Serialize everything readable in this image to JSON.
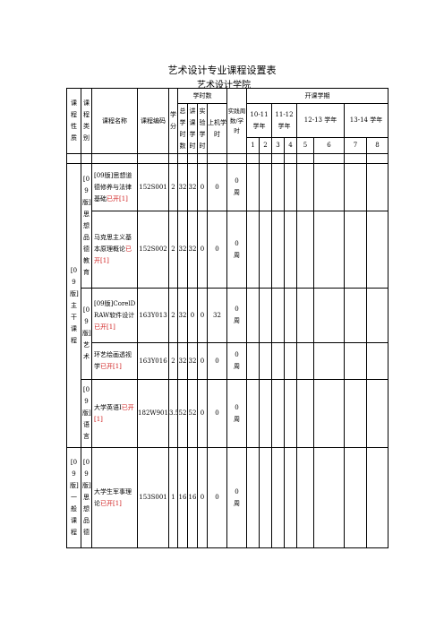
{
  "document": {
    "title": "艺术设计专业课程设置表",
    "subtitle": "艺术设计学院"
  },
  "header": {
    "nature": "课程性质",
    "category": "课程类别",
    "name": "课程名称",
    "code": "课程编码",
    "credit": "学分",
    "hours_group": "学时数",
    "total": "总学时数",
    "lecture": "讲课学时",
    "experiment": "实验学时",
    "computer": "上机学时",
    "practice": "实践周数/学时",
    "terms_group": "开课学期",
    "years": [
      "10-11 学年",
      "11-12 学年",
      "12-13 学年",
      "13-14 学年"
    ],
    "semesters": [
      "1",
      "2",
      "3",
      "4",
      "5",
      "6",
      "7",
      "8"
    ]
  },
  "groups": {
    "g1_nature": "[09版]主干课程",
    "g1_cat_a": "[09版]思想品德教育",
    "g1_cat_b": "[09版]艺术",
    "g1_cat_c": "[09版]语言",
    "g2_nature": "[09版]一般课程",
    "g2_cat": "[09版]思想品德"
  },
  "courses": [
    {
      "prefix": "[09版]",
      "name": "思想道德修养与法律基础",
      "status": "已开[1]",
      "code": "152S001",
      "credit": "2",
      "total": "32",
      "lecture": "32",
      "experiment": "0",
      "computer": "0",
      "practice": "0周"
    },
    {
      "prefix": "",
      "name": "马克思主义基本原理概论",
      "status": "已开[1]",
      "code": "152S002",
      "credit": "2",
      "total": "32",
      "lecture": "32",
      "experiment": "0",
      "computer": "0",
      "practice": "0周"
    },
    {
      "prefix": "[09版]",
      "name": "CorelDRAW软件设计",
      "status": "已开[1]",
      "code": "163Y013",
      "credit": "2",
      "total": "32",
      "lecture": "0",
      "experiment": "0",
      "computer": "32",
      "practice": "0周"
    },
    {
      "prefix": "",
      "name": "环艺绘画透视学",
      "status": "已开[1]",
      "code": "163Y016",
      "credit": "2",
      "total": "32",
      "lecture": "32",
      "experiment": "0",
      "computer": "0",
      "practice": "0周"
    },
    {
      "prefix": "",
      "name": "大学英语Ⅰ",
      "status": "已开[1]",
      "code": "182W901",
      "credit": "3.5",
      "total": "52",
      "lecture": "52",
      "experiment": "0",
      "computer": "0",
      "practice": "0周"
    },
    {
      "prefix": "",
      "name": "大学生军事理论",
      "status": "已开[1]",
      "code": "153S001",
      "credit": "1",
      "total": "16",
      "lecture": "16",
      "experiment": "0",
      "computer": "0",
      "practice": "0周"
    }
  ]
}
